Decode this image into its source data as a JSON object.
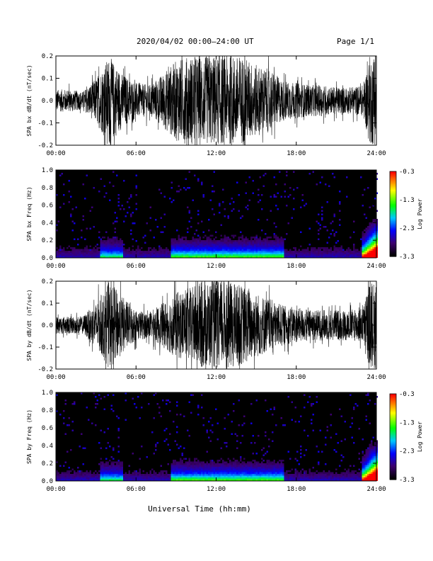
{
  "header": {
    "title": "2020/04/02  00:00–24:00 UT",
    "page": "Page 1/1"
  },
  "xaxis": {
    "label": "Universal Time (hh:mm)",
    "ticks": [
      "00:00",
      "06:00",
      "12:00",
      "18:00",
      "24:00"
    ]
  },
  "chart_data": [
    {
      "type": "line",
      "id": "bx-waveform",
      "ylabel": "SPA bx dB/dt (nT/sec)",
      "ylim": [
        -0.2,
        0.2
      ],
      "yticks": [
        "0.2",
        "0.1",
        "0.0",
        "-0.1",
        "-0.2"
      ],
      "xlim": [
        0,
        24
      ],
      "xunit": "hours UT",
      "envelope_hours": [
        0,
        1,
        2,
        3,
        4,
        5,
        6,
        7,
        8,
        9,
        10,
        11,
        12,
        13,
        14,
        15,
        16,
        17,
        18,
        19,
        20,
        21,
        22,
        23,
        23.5,
        24
      ],
      "envelope_amplitude": [
        0.05,
        0.05,
        0.04,
        0.1,
        0.2,
        0.12,
        0.08,
        0.07,
        0.12,
        0.18,
        0.2,
        0.2,
        0.2,
        0.2,
        0.2,
        0.16,
        0.14,
        0.09,
        0.08,
        0.07,
        0.07,
        0.06,
        0.06,
        0.07,
        0.2,
        0.2
      ]
    },
    {
      "type": "heatmap",
      "id": "bx-spectrogram",
      "ylabel": "SPA bx Freq (Hz)",
      "ylim": [
        0.0,
        1.0
      ],
      "yticks": [
        "1.0",
        "0.8",
        "0.6",
        "0.4",
        "0.2",
        "0.0"
      ],
      "xlim": [
        0,
        24
      ],
      "colorbar": {
        "label": "Log₁₀ Power",
        "label_text": "Log Power",
        "range": [
          -3.3,
          -0.3
        ],
        "ticks": [
          "-0.3",
          "-1.3",
          "-2.3",
          "-3.3"
        ]
      }
    },
    {
      "type": "line",
      "id": "by-waveform",
      "ylabel": "SPA by dB/dt (nT/sec)",
      "ylim": [
        -0.2,
        0.2
      ],
      "yticks": [
        "0.2",
        "0.1",
        "0.0",
        "-0.1",
        "-0.2"
      ],
      "xlim": [
        0,
        24
      ],
      "xunit": "hours UT",
      "envelope_hours": [
        0,
        1,
        2,
        3,
        4,
        5,
        6,
        7,
        8,
        9,
        10,
        11,
        12,
        13,
        14,
        15,
        16,
        17,
        18,
        19,
        20,
        21,
        22,
        23,
        23.5,
        24
      ],
      "envelope_amplitude": [
        0.04,
        0.04,
        0.04,
        0.1,
        0.2,
        0.13,
        0.07,
        0.06,
        0.1,
        0.15,
        0.17,
        0.2,
        0.2,
        0.2,
        0.18,
        0.15,
        0.12,
        0.09,
        0.08,
        0.07,
        0.07,
        0.07,
        0.07,
        0.08,
        0.2,
        0.2
      ]
    },
    {
      "type": "heatmap",
      "id": "by-spectrogram",
      "ylabel": "SPA by Freq (Hz)",
      "ylim": [
        0.0,
        1.0
      ],
      "yticks": [
        "1.0",
        "0.8",
        "0.6",
        "0.4",
        "0.2",
        "0.0"
      ],
      "xlim": [
        0,
        24
      ],
      "colorbar": {
        "label": "Log₁₀ Power",
        "label_text": "Log Power",
        "range": [
          -3.3,
          -0.3
        ],
        "ticks": [
          "-0.3",
          "-1.3",
          "-2.3",
          "-3.3"
        ]
      }
    }
  ]
}
